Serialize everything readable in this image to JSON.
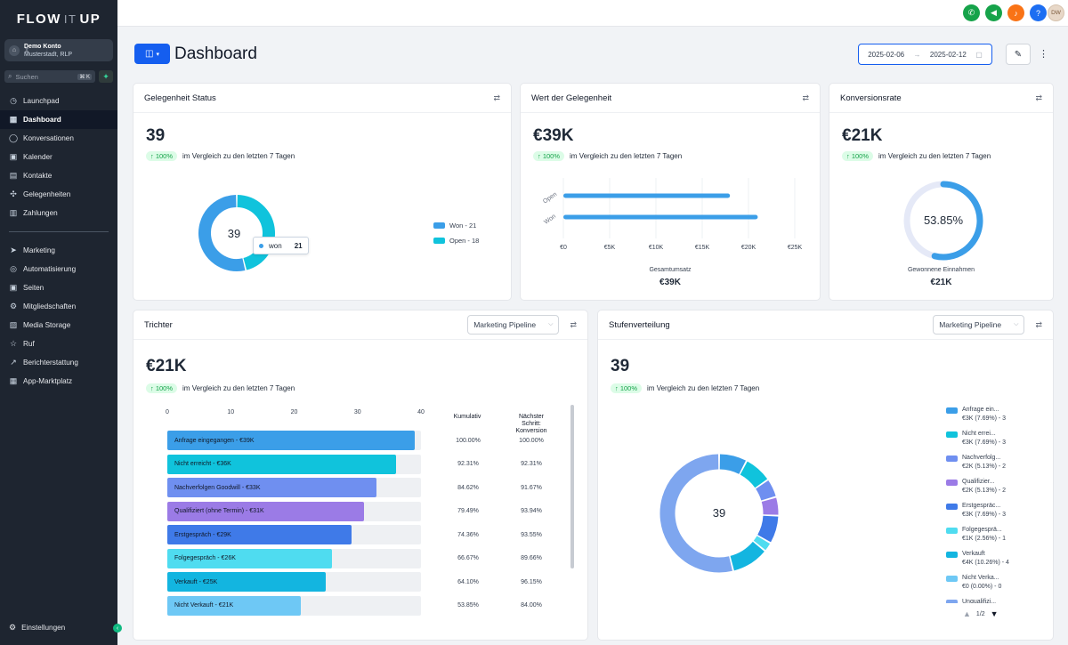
{
  "app": {
    "logo_left": "FLOW",
    "logo_mid": "IT",
    "logo_right": "UP"
  },
  "account": {
    "name": "Demo Konto",
    "location": "Musterstadt, RLP"
  },
  "search": {
    "placeholder": "Suchen",
    "shortcut": "⌘ K"
  },
  "nav_main": [
    {
      "label": "Launchpad",
      "icon": "rocket-icon",
      "glyph": "◷"
    },
    {
      "label": "Dashboard",
      "icon": "grid-icon",
      "glyph": "▦",
      "active": true
    },
    {
      "label": "Konversationen",
      "icon": "chat-icon",
      "glyph": "◯"
    },
    {
      "label": "Kalender",
      "icon": "calendar-icon",
      "glyph": "▣"
    },
    {
      "label": "Kontakte",
      "icon": "contacts-icon",
      "glyph": "▤"
    },
    {
      "label": "Gelegenheiten",
      "icon": "opportunities-icon",
      "glyph": "✣"
    },
    {
      "label": "Zahlungen",
      "icon": "payments-icon",
      "glyph": "▥"
    }
  ],
  "nav_secondary": [
    {
      "label": "Marketing",
      "icon": "send-icon",
      "glyph": "➤"
    },
    {
      "label": "Automatisierung",
      "icon": "automation-icon",
      "glyph": "◎"
    },
    {
      "label": "Seiten",
      "icon": "pages-icon",
      "glyph": "▣"
    },
    {
      "label": "Mitgliedschaften",
      "icon": "membership-icon",
      "glyph": "⚙"
    },
    {
      "label": "Media Storage",
      "icon": "image-icon",
      "glyph": "▨"
    },
    {
      "label": "Ruf",
      "icon": "star-icon",
      "glyph": "☆"
    },
    {
      "label": "Berichterstattung",
      "icon": "trend-icon",
      "glyph": "↗"
    },
    {
      "label": "App-Marktplatz",
      "icon": "apps-icon",
      "glyph": "▦"
    }
  ],
  "settings": {
    "label": "Einstellungen"
  },
  "topbar": {
    "icons": [
      {
        "name": "phone-icon",
        "color": "#16a34a",
        "glyph": "✆"
      },
      {
        "name": "megaphone-icon",
        "color": "#16a34a",
        "glyph": "📢"
      },
      {
        "name": "bell-icon",
        "color": "#f97316",
        "glyph": "🔔"
      },
      {
        "name": "help-icon",
        "color": "#1d6ef2",
        "glyph": "?"
      }
    ],
    "avatar_initials": "DW"
  },
  "header": {
    "title": "Dashboard",
    "date_from": "2025-02-06",
    "date_to": "2025-02-12"
  },
  "comparison_text": "im Vergleich zu den letzten 7 Tagen",
  "cards": {
    "status": {
      "title": "Gelegenheit Status",
      "value": "39",
      "badge": "↑ 100%",
      "center": "39",
      "tooltip_label": "won",
      "tooltip_value": "21",
      "legend": [
        {
          "label": "Won - 21",
          "color": "#3b9ee8"
        },
        {
          "label": "Open - 18",
          "color": "#10c3dc"
        }
      ]
    },
    "value": {
      "title": "Wert der Gelegenheit",
      "value": "€39K",
      "badge": "↑ 100%",
      "footer_label": "Gesamtumsatz",
      "footer_value": "€39K"
    },
    "conversion": {
      "title": "Konversionsrate",
      "value": "€21K",
      "badge": "↑ 100%",
      "center": "53.85%",
      "footer_label": "Gewonnene Einnahmen",
      "footer_value": "€21K"
    },
    "funnel": {
      "title": "Trichter",
      "select": "Marketing Pipeline",
      "value": "€21K",
      "badge": "↑ 100%",
      "col_cumulative": "Kumulativ",
      "col_next": "Nächster Schritt: Konversion"
    },
    "stages": {
      "title": "Stufenverteilung",
      "select": "Marketing Pipeline",
      "value": "39",
      "badge": "↑ 100%",
      "center": "39",
      "page": "1/2"
    }
  },
  "chart_data": [
    {
      "type": "pie",
      "variant": "donut",
      "categories": [
        "won",
        "open"
      ],
      "values": [
        21,
        18
      ],
      "colors": [
        "#3b9ee8",
        "#10c3dc"
      ]
    },
    {
      "type": "bar",
      "orientation": "horizontal",
      "categories": [
        "Open",
        "Won"
      ],
      "values": [
        18000,
        21000
      ],
      "xlim": [
        0,
        25000
      ],
      "xticks": [
        "€0",
        "€5K",
        "€10K",
        "€15K",
        "€20K",
        "€25K"
      ],
      "xlabel": "Gesamtumsatz",
      "color": "#3b9ee8"
    },
    {
      "type": "pie",
      "variant": "gauge",
      "values": [
        53.85
      ],
      "max": 100,
      "colors": [
        "#3b9ee8",
        "#e5e9f7"
      ]
    },
    {
      "type": "bar",
      "orientation": "horizontal",
      "variant": "funnel",
      "xlim": [
        0,
        40
      ],
      "xticks": [
        "0",
        "10",
        "20",
        "30",
        "40"
      ],
      "rows": [
        {
          "label": "Anfrage eingegangen - €39K",
          "value": 39,
          "cumulative": "100.00%",
          "next": "100.00%",
          "color": "#3b9ee8"
        },
        {
          "label": "Nicht erreicht - €36K",
          "value": 36,
          "cumulative": "92.31%",
          "next": "92.31%",
          "color": "#10c3dc"
        },
        {
          "label": "Nachverfolgen Goodwill - €33K",
          "value": 33,
          "cumulative": "84.62%",
          "next": "91.67%",
          "color": "#6f8ff0"
        },
        {
          "label": "Qualifiziert (ohne Termin) - €31K",
          "value": 31,
          "cumulative": "79.49%",
          "next": "93.94%",
          "color": "#9b7be6"
        },
        {
          "label": "Erstgespräch - €29K",
          "value": 29,
          "cumulative": "74.36%",
          "next": "93.55%",
          "color": "#3f7ae8"
        },
        {
          "label": "Folgegespräch - €26K",
          "value": 26,
          "cumulative": "66.67%",
          "next": "89.66%",
          "color": "#4fdcf0"
        },
        {
          "label": "Verkauft - €25K",
          "value": 25,
          "cumulative": "64.10%",
          "next": "96.15%",
          "color": "#13b5e0"
        },
        {
          "label": "Nicht Verkauft - €21K",
          "value": 21,
          "cumulative": "53.85%",
          "next": "84.00%",
          "color": "#6ec8f5"
        }
      ]
    },
    {
      "type": "pie",
      "variant": "donut",
      "categories": [
        "Anfrage ein...",
        "Nicht errei...",
        "Nachverfolg...",
        "Qualifizier...",
        "Erstgespräc...",
        "Folgegesprä...",
        "Verkauft",
        "Nicht Verka...",
        "Unqualifizi..."
      ],
      "values": [
        3,
        3,
        2,
        2,
        3,
        1,
        4,
        0,
        21
      ],
      "legend_details": [
        "€3K (7.69%) - 3",
        "€3K (7.69%) - 3",
        "€2K (5.13%) - 2",
        "€2K (5.13%) - 2",
        "€3K (7.69%) - 3",
        "€1K (2.56%) - 1",
        "€4K (10.26%) - 4",
        "€0 (0.00%) - 0",
        ""
      ],
      "colors": [
        "#3b9ee8",
        "#10c3dc",
        "#6f8ff0",
        "#9b7be6",
        "#3f7ae8",
        "#4fdcf0",
        "#13b5e0",
        "#6ec8f5",
        "#7ea6ef"
      ]
    }
  ]
}
